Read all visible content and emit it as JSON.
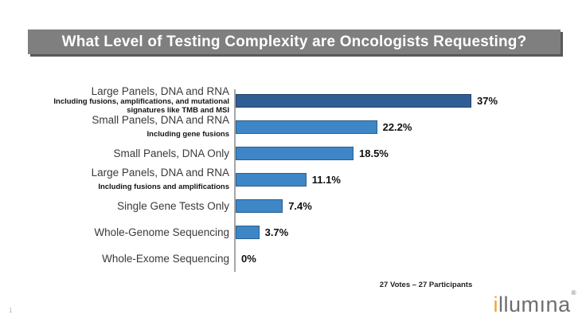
{
  "slide": {
    "title": "What Level of Testing Complexity are Oncologists Requesting?",
    "title_bar_color": "#7F7F7F",
    "title_shadow_color": "#595959",
    "page_number": "1",
    "footer_note": "27 Votes – 27 Participants",
    "logo": {
      "text_first": "i",
      "text_rest": "llumına",
      "reg_mark": "®",
      "orange": "#F8A02B",
      "gray": "#6D6E71"
    }
  },
  "chart_data": {
    "type": "bar",
    "orientation": "horizontal",
    "title": "What Level of Testing Complexity are Oncologists Requesting?",
    "categories": [
      "Large Panels, DNA and RNA",
      "Small Panels, DNA and RNA",
      "Small Panels, DNA Only",
      "Large Panels, DNA and RNA",
      "Single Gene Tests Only",
      "Whole-Genome Sequencing",
      "Whole-Exome Sequencing"
    ],
    "sublabels": [
      "Including fusions, amplifications, and mutational signatures like TMB and MSI",
      "Including gene fusions",
      "",
      "Including fusions and amplifications",
      "",
      "",
      ""
    ],
    "values": [
      37,
      22.2,
      18.5,
      11.1,
      7.4,
      3.7,
      0
    ],
    "value_labels": [
      "37%",
      "22.2%",
      "18.5%",
      "11.1%",
      "7.4%",
      "3.7%",
      "0%"
    ],
    "xlim": [
      0,
      40
    ],
    "grid": false,
    "legend": "none",
    "bar_colors": [
      "#2E5E94",
      "#3E86C6",
      "#3E86C6",
      "#3E86C6",
      "#3E86C6",
      "#3E86C6",
      "#3E86C6"
    ],
    "axis_color": "#A6A6A6",
    "annotation": "27 Votes – 27 Participants"
  }
}
